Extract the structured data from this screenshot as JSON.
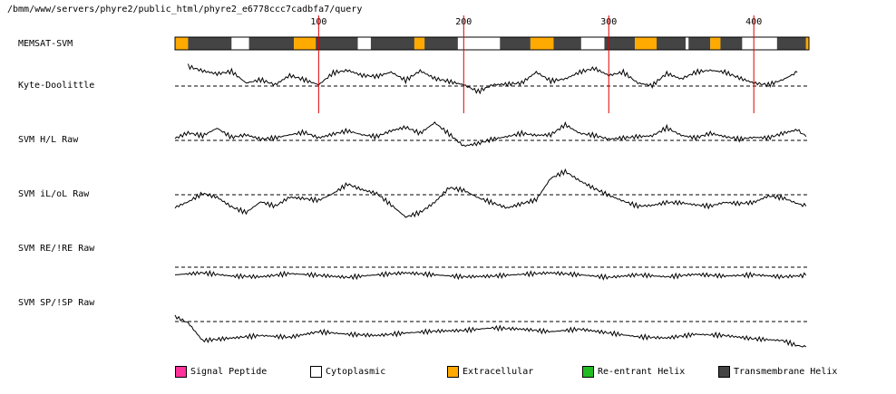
{
  "header": {
    "path": "/bmm/www/servers/phyre2/public_html/phyre2_e6778ccc7cadbfa7/query"
  },
  "chart_data": {
    "type": "line",
    "x_ticks": [
      100,
      200,
      300,
      400
    ],
    "x_range": [
      1,
      438
    ],
    "memsat": {
      "label": "MEMSAT-SVM",
      "segments": [
        {
          "start": 1,
          "end": 10,
          "type": "extracellular"
        },
        {
          "start": 10,
          "end": 40,
          "type": "transmembrane"
        },
        {
          "start": 40,
          "end": 52,
          "type": "cytoplasmic"
        },
        {
          "start": 52,
          "end": 83,
          "type": "transmembrane"
        },
        {
          "start": 83,
          "end": 98,
          "type": "extracellular"
        },
        {
          "start": 98,
          "end": 127,
          "type": "transmembrane"
        },
        {
          "start": 127,
          "end": 136,
          "type": "cytoplasmic"
        },
        {
          "start": 136,
          "end": 166,
          "type": "transmembrane"
        },
        {
          "start": 166,
          "end": 173,
          "type": "extracellular"
        },
        {
          "start": 173,
          "end": 196,
          "type": "transmembrane"
        },
        {
          "start": 196,
          "end": 225,
          "type": "cytoplasmic"
        },
        {
          "start": 225,
          "end": 246,
          "type": "transmembrane"
        },
        {
          "start": 246,
          "end": 262,
          "type": "extracellular"
        },
        {
          "start": 262,
          "end": 281,
          "type": "transmembrane"
        },
        {
          "start": 281,
          "end": 297,
          "type": "cytoplasmic"
        },
        {
          "start": 297,
          "end": 318,
          "type": "transmembrane"
        },
        {
          "start": 318,
          "end": 333,
          "type": "extracellular"
        },
        {
          "start": 333,
          "end": 353,
          "type": "transmembrane"
        },
        {
          "start": 353,
          "end": 355,
          "type": "cytoplasmic"
        },
        {
          "start": 355,
          "end": 370,
          "type": "transmembrane"
        },
        {
          "start": 370,
          "end": 377,
          "type": "extracellular"
        },
        {
          "start": 377,
          "end": 392,
          "type": "transmembrane"
        },
        {
          "start": 392,
          "end": 416,
          "type": "cytoplasmic"
        },
        {
          "start": 416,
          "end": 436,
          "type": "transmembrane"
        },
        {
          "start": 436,
          "end": 438,
          "type": "extracellular"
        }
      ]
    },
    "tracks": [
      {
        "name": "Kyte-Doolittle",
        "x": [
          10,
          20,
          30,
          40,
          50,
          60,
          70,
          80,
          90,
          100,
          110,
          120,
          130,
          140,
          150,
          160,
          170,
          180,
          190,
          200,
          210,
          220,
          230,
          240,
          250,
          260,
          270,
          280,
          290,
          300,
          310,
          320,
          330,
          340,
          350,
          360,
          370,
          380,
          390,
          400,
          410,
          420,
          430
        ],
        "values": [
          0.78,
          0.6,
          0.48,
          0.58,
          0.12,
          0.25,
          0.05,
          0.42,
          0.25,
          0.05,
          0.52,
          0.62,
          0.42,
          0.38,
          0.55,
          0.22,
          0.6,
          0.3,
          0.18,
          0.05,
          -0.22,
          0.05,
          0.08,
          0.12,
          0.55,
          0.2,
          0.28,
          0.55,
          0.7,
          0.42,
          0.55,
          0.12,
          0.02,
          0.5,
          0.28,
          0.55,
          0.62,
          0.55,
          0.32,
          0.12,
          0.05,
          0.25,
          0.55
        ]
      },
      {
        "name": "SVM H/L Raw",
        "x": [
          1,
          10,
          20,
          30,
          40,
          50,
          60,
          70,
          80,
          90,
          100,
          110,
          120,
          130,
          140,
          150,
          160,
          170,
          180,
          190,
          200,
          210,
          220,
          230,
          240,
          250,
          260,
          270,
          280,
          290,
          300,
          310,
          320,
          330,
          340,
          350,
          360,
          370,
          380,
          390,
          400,
          410,
          420,
          430,
          436
        ],
        "values": [
          0.08,
          0.3,
          0.18,
          0.48,
          0.12,
          0.22,
          0.05,
          0.1,
          0.22,
          0.32,
          0.1,
          0.25,
          0.38,
          0.22,
          0.15,
          0.38,
          0.52,
          0.28,
          0.7,
          0.25,
          -0.22,
          -0.12,
          0.05,
          0.15,
          0.28,
          0.2,
          0.22,
          0.62,
          0.28,
          0.2,
          0.05,
          0.1,
          0.15,
          0.18,
          0.5,
          0.2,
          0.1,
          0.28,
          0.15,
          0.05,
          0.12,
          0.1,
          0.28,
          0.42,
          0.15
        ]
      },
      {
        "name": "SVM iL/oL Raw",
        "x": [
          1,
          10,
          20,
          30,
          40,
          50,
          60,
          70,
          80,
          90,
          100,
          110,
          120,
          130,
          140,
          150,
          160,
          170,
          180,
          190,
          200,
          210,
          220,
          230,
          240,
          250,
          260,
          270,
          280,
          290,
          300,
          310,
          320,
          330,
          340,
          350,
          360,
          370,
          380,
          390,
          400,
          410,
          420,
          430,
          436
        ],
        "values": [
          -0.5,
          -0.28,
          0.05,
          -0.1,
          -0.48,
          -0.7,
          -0.28,
          -0.45,
          -0.1,
          -0.15,
          -0.22,
          0.05,
          0.42,
          0.2,
          0.05,
          -0.4,
          -0.88,
          -0.7,
          -0.3,
          0.28,
          0.18,
          -0.12,
          -0.32,
          -0.52,
          -0.35,
          -0.2,
          0.65,
          0.92,
          0.55,
          0.25,
          -0.02,
          -0.25,
          -0.45,
          -0.42,
          -0.3,
          -0.32,
          -0.4,
          -0.45,
          -0.3,
          -0.35,
          -0.3,
          -0.05,
          -0.12,
          -0.35,
          -0.45
        ]
      },
      {
        "name": "SVM RE/!RE Raw",
        "x": [
          1,
          20,
          40,
          60,
          80,
          100,
          120,
          140,
          160,
          180,
          200,
          220,
          240,
          260,
          280,
          300,
          320,
          340,
          360,
          380,
          400,
          420,
          436
        ],
        "values": [
          -0.3,
          -0.22,
          -0.35,
          -0.38,
          -0.25,
          -0.32,
          -0.4,
          -0.3,
          -0.22,
          -0.3,
          -0.38,
          -0.35,
          -0.28,
          -0.22,
          -0.3,
          -0.4,
          -0.3,
          -0.38,
          -0.28,
          -0.35,
          -0.3,
          -0.38,
          -0.32
        ]
      },
      {
        "name": "SVM SP/!SP Raw",
        "x": [
          1,
          10,
          20,
          40,
          60,
          80,
          100,
          120,
          140,
          160,
          180,
          200,
          220,
          240,
          260,
          280,
          300,
          320,
          340,
          360,
          380,
          400,
          420,
          430,
          436
        ],
        "values": [
          0.2,
          -0.05,
          -0.75,
          -0.65,
          -0.55,
          -0.62,
          -0.4,
          -0.5,
          -0.55,
          -0.45,
          -0.38,
          -0.35,
          -0.25,
          -0.3,
          -0.4,
          -0.3,
          -0.45,
          -0.6,
          -0.65,
          -0.5,
          -0.55,
          -0.68,
          -0.75,
          -0.95,
          -1.0
        ]
      }
    ]
  },
  "legend": [
    {
      "label": "Signal Peptide",
      "color": "#ff3399"
    },
    {
      "label": "Cytoplasmic",
      "color": "#ffffff"
    },
    {
      "label": "Extracellular",
      "color": "#ffaa00"
    },
    {
      "label": "Re-entrant Helix",
      "color": "#22bb22"
    },
    {
      "label": "Transmembrane Helix",
      "color": "#444444"
    }
  ],
  "colors": {
    "extracellular": "#ffaa00",
    "transmembrane": "#444444",
    "cytoplasmic": "#ffffff",
    "tick_line": "#e00000",
    "trace": "#000000"
  }
}
